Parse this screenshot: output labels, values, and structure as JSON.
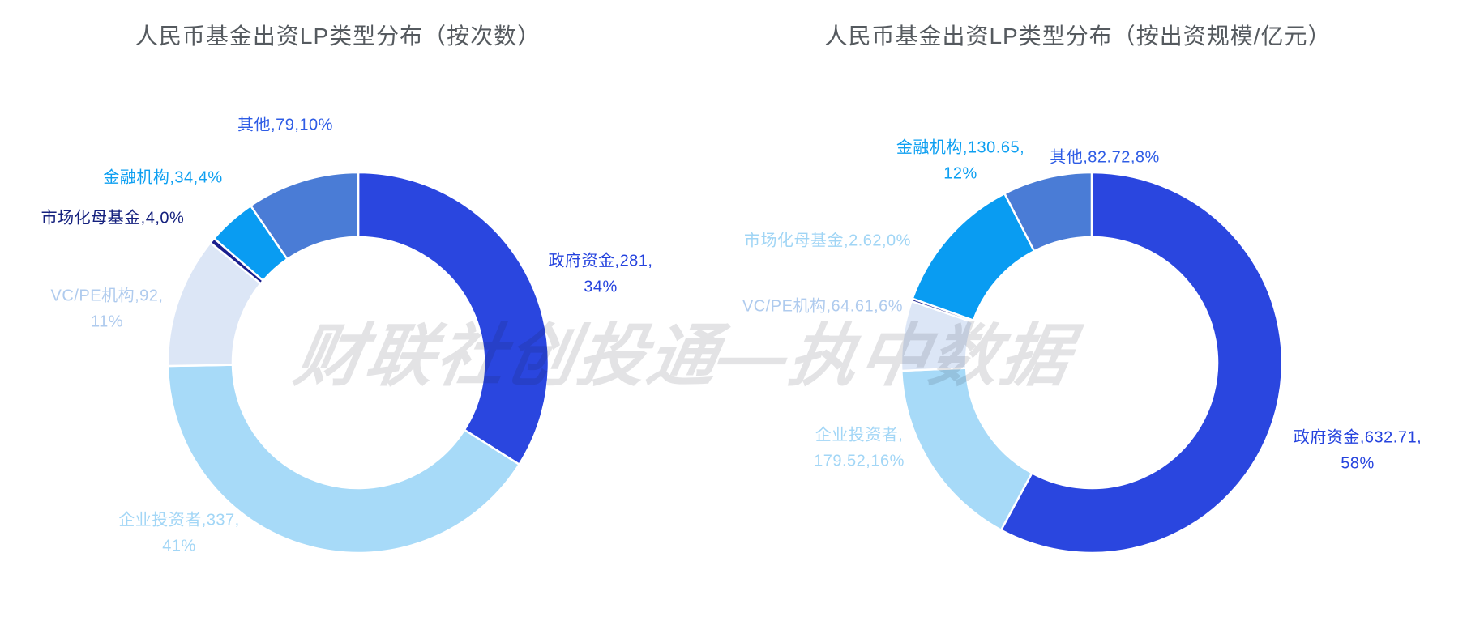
{
  "watermark": {
    "text": "财联社创投通—执中数据"
  },
  "chart_data": [
    {
      "type": "pie",
      "subtype": "donut",
      "title": "人民币基金出资LP类型分布（按次数）",
      "legend_position": "none",
      "total": 827,
      "slices": [
        {
          "name": "政府资金",
          "value": 281,
          "pct": "34%",
          "color": "#2A46DF",
          "label_color": "#2543DE",
          "label_lines": [
            "政府资金,281,",
            "34%"
          ]
        },
        {
          "name": "企业投资者",
          "value": 337,
          "pct": "41%",
          "color": "#A7DAF8",
          "label_color": "#A2D6F6",
          "label_lines": [
            "企业投资者,337,",
            "41%"
          ]
        },
        {
          "name": "VC/PE机构",
          "value": 92,
          "pct": "11%",
          "color": "#DCE6F6",
          "label_color": "#AFCBEE",
          "label_lines": [
            "VC/PE机构,92,",
            "11%"
          ]
        },
        {
          "name": "市场化母基金",
          "value": 4,
          "pct": "0%",
          "color": "#1A1F8E",
          "label_color": "#15217E",
          "label_lines": [
            "市场化母基金,4,0%"
          ]
        },
        {
          "name": "金融机构",
          "value": 34,
          "pct": "4%",
          "color": "#099CF2",
          "label_color": "#0D9FF1",
          "label_lines": [
            "金融机构,34,4%"
          ]
        },
        {
          "name": "其他",
          "value": 79,
          "pct": "10%",
          "color": "#4A7CD6",
          "label_color": "#2E5CE5",
          "label_lines": [
            "其他,79,10%"
          ]
        }
      ]
    },
    {
      "type": "pie",
      "subtype": "donut",
      "title": "人民币基金出资LP类型分布（按出资规模/亿元）",
      "legend_position": "none",
      "total": 1092.83,
      "slices": [
        {
          "name": "政府资金",
          "value": 632.71,
          "pct": "58%",
          "color": "#2A46DF",
          "label_color": "#2543DE",
          "label_lines": [
            "政府资金,632.71,",
            "58%"
          ]
        },
        {
          "name": "企业投资者",
          "value": 179.52,
          "pct": "16%",
          "color": "#A7DAF8",
          "label_color": "#A2D6F6",
          "label_lines": [
            "企业投资者,",
            "179.52,16%"
          ]
        },
        {
          "name": "VC/PE机构",
          "value": 64.61,
          "pct": "6%",
          "color": "#DCE6F6",
          "label_color": "#AFCBEE",
          "label_lines": [
            "VC/PE机构,64.61,6%"
          ]
        },
        {
          "name": "市场化母基金",
          "value": 2.62,
          "pct": "0%",
          "color": "#1A1F8E",
          "label_color": "#A0D5F5",
          "label_lines": [
            "市场化母基金,2.62,0%"
          ]
        },
        {
          "name": "金融机构",
          "value": 130.65,
          "pct": "12%",
          "color": "#099CF2",
          "label_color": "#0D9FF1",
          "label_lines": [
            "金融机构,130.65,",
            "12%"
          ]
        },
        {
          "name": "其他",
          "value": 82.72,
          "pct": "8%",
          "color": "#4A7CD6",
          "label_color": "#2E5CE5",
          "label_lines": [
            "其他,82.72,8%"
          ]
        }
      ]
    }
  ]
}
